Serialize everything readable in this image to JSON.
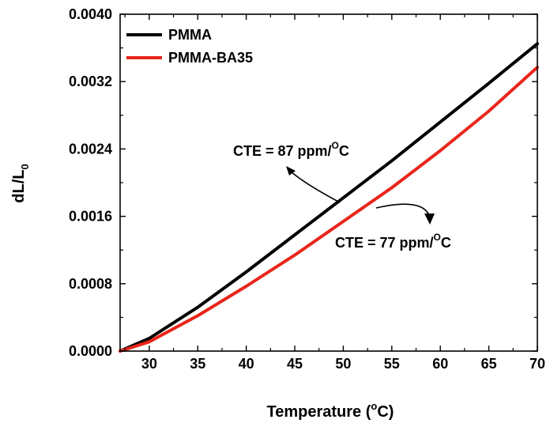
{
  "chart_data": {
    "type": "line",
    "xlim": [
      27,
      70
    ],
    "ylim": [
      0,
      0.004
    ],
    "x_ticks": [
      30,
      35,
      40,
      45,
      50,
      55,
      60,
      65,
      70
    ],
    "x_tick_labels": [
      "30",
      "35",
      "40",
      "45",
      "50",
      "55",
      "60",
      "65",
      "70"
    ],
    "y_ticks": [
      0,
      0.0008,
      0.0016,
      0.0024,
      0.0032,
      0.004
    ],
    "y_tick_labels": [
      "0.0000",
      "0.0008",
      "0.0016",
      "0.0024",
      "0.0032",
      "0.0040"
    ],
    "xlabel": {
      "main": "Temperature (",
      "sup": "o",
      "tail": "C)"
    },
    "ylabel": {
      "main": "dL/L",
      "sub": "0"
    },
    "legend": "top-left",
    "grid": false,
    "series": [
      {
        "name": "PMMA",
        "color": "#000000",
        "x": [
          27,
          30,
          35,
          40,
          45,
          50,
          55,
          60,
          65,
          70
        ],
        "y": [
          0.0,
          0.00015,
          0.00052,
          0.00094,
          0.00138,
          0.00182,
          0.00226,
          0.00272,
          0.00318,
          0.00365
        ]
      },
      {
        "name": "PMMA-BA35",
        "color": "#e8251b",
        "x": [
          27,
          30,
          35,
          40,
          45,
          50,
          55,
          60,
          65,
          70
        ],
        "y": [
          0.0,
          0.00011,
          0.00042,
          0.00077,
          0.00114,
          0.00154,
          0.00194,
          0.00238,
          0.00285,
          0.00337
        ]
      }
    ],
    "annotations": [
      {
        "prefix": "CTE = 87 ppm/",
        "sup": "O",
        "suffix": "C",
        "target_series": "PMMA"
      },
      {
        "prefix": "CTE = 77 ppm/",
        "sup": "O",
        "suffix": "C",
        "target_series": "PMMA-BA35"
      }
    ]
  }
}
